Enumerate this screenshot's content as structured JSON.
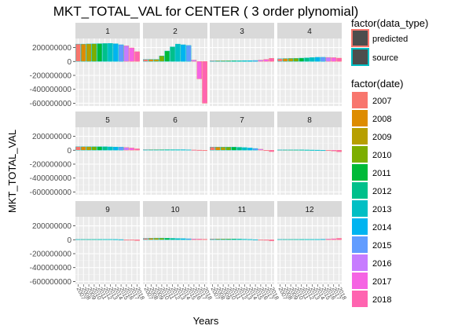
{
  "chart_data": {
    "type": "bar",
    "title": "MKT_TOTAL_VAL for CENTER ( 3  order plynomial)",
    "xlabel": "Years",
    "ylabel": "MKT_TOTAL_VAL",
    "ylim": [
      -640000000,
      330000000
    ],
    "yticks": [
      {
        "value": 200000000,
        "label": "200000000"
      },
      {
        "value": 0,
        "label": "0"
      },
      {
        "value": -200000000,
        "label": "-200000000"
      },
      {
        "value": -400000000,
        "label": "-400000000"
      },
      {
        "value": -600000000,
        "label": "-600000000"
      }
    ],
    "years": [
      "2007",
      "2008",
      "2009",
      "2010",
      "2011",
      "2012",
      "2013",
      "2014",
      "2015",
      "2016",
      "2017",
      "2018"
    ],
    "year_colors": [
      "#F8766D",
      "#DE8C00",
      "#B79F00",
      "#7CAE00",
      "#00BA38",
      "#00C08B",
      "#00BFC4",
      "#00B4F0",
      "#619CFF",
      "#C77CFF",
      "#F564E3",
      "#FF64B0"
    ],
    "legend": {
      "type_title": "factor(data_type)",
      "type_items": [
        {
          "label": "predicted",
          "color": "#F8766D"
        },
        {
          "label": "source",
          "color": "#00BFC4"
        }
      ],
      "date_title": "factor(date)"
    },
    "grid": true,
    "panels": [
      {
        "label": "1",
        "values": [
          250000000,
          250000000,
          252000000,
          254000000,
          256000000,
          258000000,
          260000000,
          255000000,
          240000000,
          225000000,
          195000000,
          140000000
        ],
        "types": [
          "source",
          "source",
          "source",
          "source",
          "source",
          "source",
          "source",
          "source",
          "source",
          "predicted",
          "predicted",
          "predicted"
        ]
      },
      {
        "label": "2",
        "values": [
          30000000,
          30000000,
          30000000,
          80000000,
          150000000,
          210000000,
          250000000,
          240000000,
          230000000,
          20000000,
          -250000000,
          -600000000
        ],
        "types": [
          "source",
          "source",
          "source",
          "source",
          "source",
          "source",
          "source",
          "source",
          "source",
          "predicted",
          "predicted",
          "predicted"
        ]
      },
      {
        "label": "3",
        "values": [
          10000000,
          10000000,
          10000000,
          10000000,
          10000000,
          10000000,
          12000000,
          12000000,
          14000000,
          20000000,
          30000000,
          45000000
        ],
        "types": [
          "source",
          "source",
          "source",
          "source",
          "source",
          "source",
          "source",
          "source",
          "source",
          "predicted",
          "predicted",
          "predicted"
        ]
      },
      {
        "label": "4",
        "values": [
          40000000,
          42000000,
          44000000,
          46000000,
          48000000,
          52000000,
          56000000,
          60000000,
          60000000,
          58000000,
          55000000,
          48000000
        ],
        "types": [
          "source",
          "source",
          "source",
          "source",
          "source",
          "source",
          "source",
          "source",
          "source",
          "predicted",
          "predicted",
          "predicted"
        ]
      },
      {
        "label": "5",
        "values": [
          50000000,
          50000000,
          50000000,
          50000000,
          50000000,
          50000000,
          48000000,
          46000000,
          44000000,
          40000000,
          32000000,
          20000000
        ],
        "types": [
          "source",
          "source",
          "source",
          "source",
          "source",
          "source",
          "source",
          "source",
          "source",
          "predicted",
          "predicted",
          "predicted"
        ]
      },
      {
        "label": "6",
        "values": [
          8000000,
          8000000,
          8000000,
          8000000,
          8000000,
          8000000,
          8000000,
          8000000,
          6000000,
          4000000,
          2000000,
          -2000000
        ],
        "types": [
          "source",
          "source",
          "source",
          "source",
          "source",
          "source",
          "source",
          "source",
          "source",
          "predicted",
          "predicted",
          "predicted"
        ]
      },
      {
        "label": "7",
        "values": [
          45000000,
          45000000,
          45000000,
          45000000,
          45000000,
          42000000,
          38000000,
          32000000,
          25000000,
          15000000,
          0,
          -20000000
        ],
        "types": [
          "source",
          "source",
          "source",
          "source",
          "source",
          "source",
          "source",
          "source",
          "source",
          "predicted",
          "predicted",
          "predicted"
        ]
      },
      {
        "label": "8",
        "values": [
          5000000,
          5000000,
          5000000,
          5000000,
          5000000,
          4000000,
          3000000,
          2000000,
          0,
          -5000000,
          -12000000,
          -22000000
        ],
        "types": [
          "source",
          "source",
          "source",
          "source",
          "source",
          "source",
          "source",
          "source",
          "source",
          "predicted",
          "predicted",
          "predicted"
        ]
      },
      {
        "label": "9",
        "values": [
          6000000,
          6000000,
          6000000,
          6000000,
          6000000,
          6000000,
          6000000,
          5000000,
          3000000,
          0,
          -5000000,
          -12000000
        ],
        "types": [
          "source",
          "source",
          "source",
          "source",
          "source",
          "source",
          "source",
          "source",
          "source",
          "predicted",
          "predicted",
          "predicted"
        ]
      },
      {
        "label": "10",
        "values": [
          20000000,
          22000000,
          24000000,
          24000000,
          22000000,
          20000000,
          18000000,
          16000000,
          14000000,
          12000000,
          10000000,
          8000000
        ],
        "types": [
          "source",
          "source",
          "source",
          "source",
          "source",
          "source",
          "source",
          "source",
          "source",
          "predicted",
          "predicted",
          "predicted"
        ]
      },
      {
        "label": "11",
        "values": [
          12000000,
          12000000,
          12000000,
          12000000,
          11000000,
          10000000,
          8000000,
          5000000,
          2000000,
          -3000000,
          -8000000,
          -15000000
        ],
        "types": [
          "source",
          "source",
          "source",
          "source",
          "source",
          "source",
          "source",
          "source",
          "source",
          "predicted",
          "predicted",
          "predicted"
        ]
      },
      {
        "label": "12",
        "values": [
          6000000,
          6000000,
          6000000,
          6000000,
          6000000,
          6000000,
          6000000,
          6000000,
          8000000,
          10000000,
          14000000,
          20000000
        ],
        "types": [
          "source",
          "source",
          "source",
          "source",
          "source",
          "source",
          "source",
          "source",
          "source",
          "predicted",
          "predicted",
          "predicted"
        ]
      }
    ]
  }
}
